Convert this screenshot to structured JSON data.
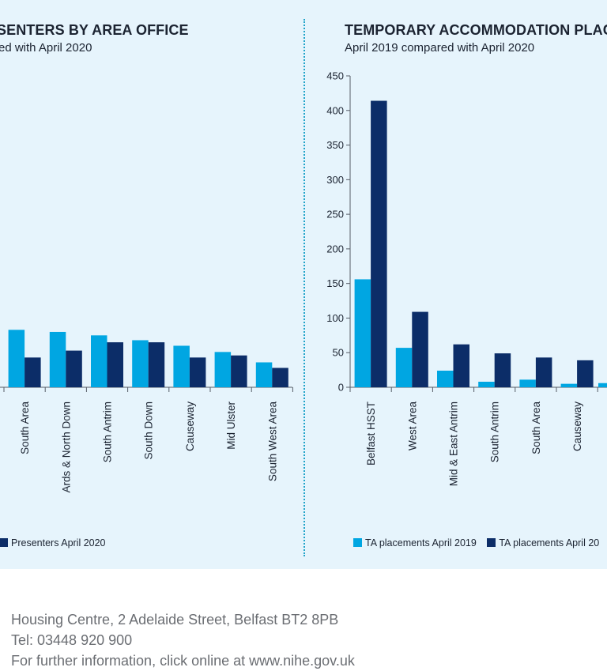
{
  "left_panel": {
    "title": "SENTERS BY AREA OFFICE",
    "subtitle": "ed with April 2020",
    "legend": [
      "Presenters April 2020"
    ]
  },
  "right_panel": {
    "title": "TEMPORARY ACCOMMODATION PLAC",
    "subtitle": "April 2019 compared with April 2020",
    "legend": [
      "TA placements April 2019",
      "TA placements April 20"
    ]
  },
  "colors": {
    "light": "#00a6e2",
    "dark": "#0c2d68",
    "panel": "#e6f4fc",
    "divider": "#1fa3c9"
  },
  "footer": {
    "line1": "Housing Centre, 2 Adelaide Street, Belfast BT2 8PB",
    "line2": "Tel: 03448 920 900",
    "line3": "For further information, click online at www.nihe.gov.uk"
  },
  "chart_data": [
    {
      "type": "bar",
      "categories": [
        "South Area",
        "Ards & North Down",
        "South Antrim",
        "South Down",
        "Causeway",
        "Mid Ulster",
        "South West Area"
      ],
      "series": [
        {
          "values": [
            83,
            80,
            75,
            68,
            60,
            51,
            36
          ]
        },
        {
          "name": "Presenters April 2020",
          "values": [
            43,
            53,
            65,
            65,
            43,
            46,
            28
          ]
        }
      ],
      "ylim": [
        0,
        450
      ],
      "grid": false
    },
    {
      "type": "bar",
      "categories": [
        "Belfast HSST",
        "West Area",
        "Mid & East Antrim",
        "South Antrim",
        "South Area",
        "Causeway"
      ],
      "series": [
        {
          "name": "TA placements April 2019",
          "values": [
            156,
            57,
            24,
            8,
            11,
            5
          ]
        },
        {
          "name": "TA placements April 20",
          "values": [
            414,
            109,
            62,
            49,
            43,
            39
          ]
        }
      ],
      "yticks": [
        "0",
        "50",
        "100",
        "150",
        "200",
        "250",
        "300",
        "350",
        "400",
        "450"
      ],
      "ylim": [
        0,
        450
      ],
      "grid": false
    }
  ]
}
